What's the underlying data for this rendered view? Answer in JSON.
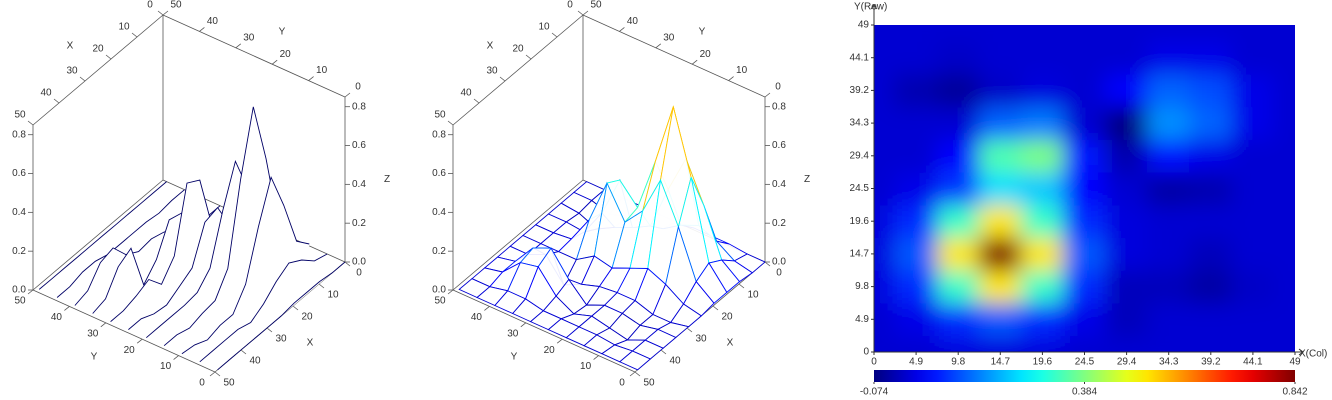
{
  "chart_data": {
    "type": "surface",
    "views": [
      "waterfall",
      "mesh",
      "heatmap"
    ],
    "line_color": "#000066",
    "x": [
      0,
      4.9,
      9.8,
      14.7,
      19.6,
      24.5,
      29.4,
      34.3,
      39.2,
      44.1,
      49
    ],
    "y": [
      0,
      4.9,
      9.8,
      14.7,
      19.6,
      24.5,
      29.4,
      34.3,
      39.2,
      44.1,
      49
    ],
    "z": [
      [
        0,
        0,
        0.01,
        0.01,
        0.01,
        0,
        0,
        0,
        0,
        0,
        0
      ],
      [
        0,
        0.02,
        0.08,
        0.12,
        0.08,
        0.02,
        -0.02,
        0,
        0,
        0,
        0
      ],
      [
        0.01,
        0.08,
        0.32,
        0.52,
        0.32,
        0.08,
        -0.02,
        -0.02,
        -0.04,
        -0.01,
        0
      ],
      [
        0.01,
        0.12,
        0.52,
        0.842,
        0.52,
        0.12,
        0.01,
        0,
        -0.02,
        0,
        0
      ],
      [
        0.01,
        0.08,
        0.32,
        0.52,
        0.32,
        0.08,
        0.01,
        0,
        0,
        0,
        0
      ],
      [
        0,
        0.02,
        0.09,
        0.24,
        0.22,
        0.04,
        0,
        -0.04,
        -0.03,
        0,
        0
      ],
      [
        0,
        0,
        0.04,
        0.34,
        0.38,
        0.06,
        -0.03,
        0.05,
        0.02,
        0,
        0
      ],
      [
        0,
        0,
        0,
        0.13,
        0.15,
        0,
        -0.074,
        0.17,
        0.13,
        0.02,
        0
      ],
      [
        0,
        -0.03,
        -0.05,
        -0.01,
        0.01,
        0,
        0.04,
        0.13,
        0.11,
        0.02,
        0
      ],
      [
        0,
        0,
        -0.01,
        0,
        0,
        0,
        0,
        0.02,
        0.02,
        0,
        0
      ],
      [
        0,
        0,
        0,
        0,
        0,
        0,
        0,
        0,
        0,
        0,
        0
      ]
    ],
    "axes3d": {
      "xlabel": "X",
      "ylabel": "Y",
      "zlabel": "Z",
      "xlim": [
        0,
        50
      ],
      "ylim": [
        0,
        50
      ],
      "zlim": [
        0,
        0.85
      ],
      "xticks": [
        0,
        10,
        20,
        30,
        40,
        50
      ],
      "yticks": [
        0,
        10,
        20,
        30,
        40,
        50
      ],
      "zticks": [
        {
          "value": 0,
          "label": "0.0"
        },
        0.2,
        0.4,
        0.6,
        0.8
      ]
    },
    "heatmap": {
      "xlabel": "X(Col)",
      "ylabel": "Y(Row)",
      "xlim": [
        0,
        49
      ],
      "ylim": [
        0,
        49
      ],
      "xticks": [
        0,
        4.9,
        9.8,
        14.7,
        19.6,
        24.5,
        29.4,
        34.3,
        39.2,
        44.1,
        49
      ],
      "yticks": [
        0,
        4.9,
        9.8,
        14.7,
        19.6,
        24.5,
        29.4,
        34.3,
        39.2,
        44.1,
        49
      ],
      "colorbar": {
        "lim": [
          -0.074,
          0.842
        ],
        "ticks": [
          -0.074,
          0.384,
          0.842
        ]
      }
    }
  }
}
